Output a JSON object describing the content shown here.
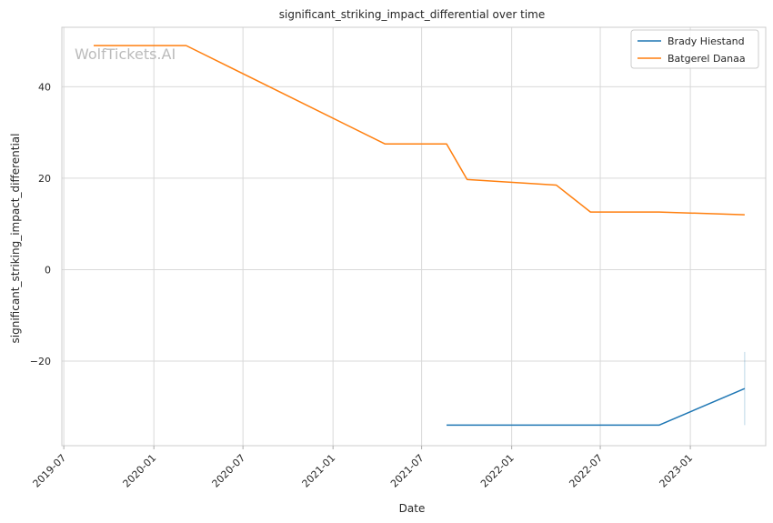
{
  "chart_data": {
    "type": "line",
    "title": "significant_striking_impact_differential over time",
    "xlabel": "Date",
    "ylabel": "significant_striking_impact_differential",
    "watermark": "WolfTickets.AI",
    "x_axis": {
      "type": "date",
      "range": [
        "2019-06-27",
        "2023-06-04"
      ],
      "ticks": [
        {
          "value": "2019-07-01",
          "label": "2019-07"
        },
        {
          "value": "2020-01-01",
          "label": "2020-01"
        },
        {
          "value": "2020-07-01",
          "label": "2020-07"
        },
        {
          "value": "2021-01-01",
          "label": "2021-01"
        },
        {
          "value": "2021-07-01",
          "label": "2021-07"
        },
        {
          "value": "2022-01-01",
          "label": "2022-01"
        },
        {
          "value": "2022-07-01",
          "label": "2022-07"
        },
        {
          "value": "2023-01-01",
          "label": "2023-01"
        }
      ]
    },
    "y_axis": {
      "range": [
        -38.5,
        53
      ],
      "ticks": [
        {
          "value": -20,
          "label": "−20"
        },
        {
          "value": 0,
          "label": "0"
        },
        {
          "value": 20,
          "label": "20"
        },
        {
          "value": 40,
          "label": "40"
        }
      ]
    },
    "grid": true,
    "legend_position": "top-right",
    "series": [
      {
        "name": "Brady Hiestand",
        "color": "#1f77b4",
        "points": [
          {
            "x": "2021-08-21",
            "y": -34
          },
          {
            "x": "2022-10-29",
            "y": -34
          },
          {
            "x": "2023-04-22",
            "y": -26
          }
        ],
        "error_band": {
          "x": "2023-04-22",
          "low": -34,
          "high": -18
        }
      },
      {
        "name": "Batgerel Danaa",
        "color": "#ff7f0e",
        "points": [
          {
            "x": "2019-08-31",
            "y": 49
          },
          {
            "x": "2020-03-07",
            "y": 49
          },
          {
            "x": "2021-04-17",
            "y": 27.5
          },
          {
            "x": "2021-08-21",
            "y": 27.5
          },
          {
            "x": "2021-10-02",
            "y": 19.7
          },
          {
            "x": "2022-04-02",
            "y": 18.5
          },
          {
            "x": "2022-06-11",
            "y": 12.6
          },
          {
            "x": "2022-10-29",
            "y": 12.6
          },
          {
            "x": "2023-04-22",
            "y": 12
          }
        ]
      }
    ]
  }
}
